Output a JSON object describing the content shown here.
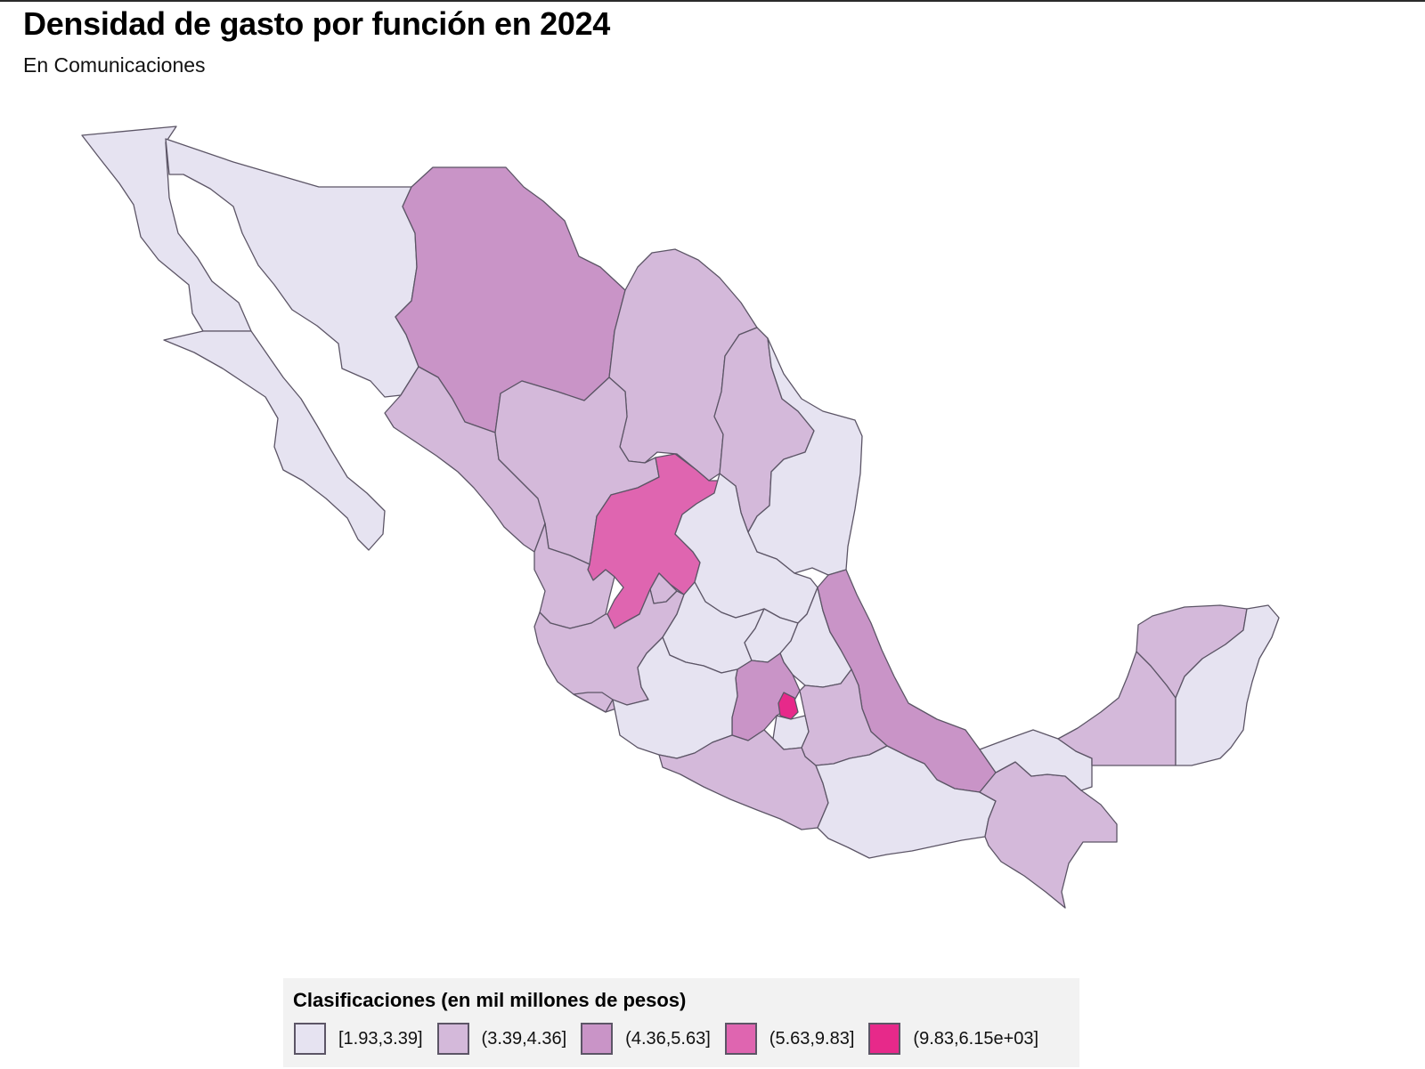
{
  "title": "Densidad de gasto por función en 2024",
  "subtitle": "En Comunicaciones",
  "legend": {
    "title": "Clasificaciones (en mil millones de pesos)",
    "classes": [
      {
        "label": "[1.93,3.39]",
        "color": "#e6e3f1"
      },
      {
        "label": "(3.39,4.36]",
        "color": "#d4b9da"
      },
      {
        "label": "(4.36,5.63]",
        "color": "#c994c7"
      },
      {
        "label": "(5.63,9.83]",
        "color": "#df65b0"
      },
      {
        "label": "(9.83,6.15e+03]",
        "color": "#e7298a"
      }
    ]
  },
  "map_data": {
    "type": "choropleth",
    "regions": [
      {
        "name": "Baja California",
        "class": 0
      },
      {
        "name": "Baja California Sur",
        "class": 0
      },
      {
        "name": "Sonora",
        "class": 0
      },
      {
        "name": "Chihuahua",
        "class": 2
      },
      {
        "name": "Coahuila",
        "class": 1
      },
      {
        "name": "Nuevo León",
        "class": 1
      },
      {
        "name": "Tamaulipas",
        "class": 0
      },
      {
        "name": "Sinaloa",
        "class": 1
      },
      {
        "name": "Durango",
        "class": 1
      },
      {
        "name": "Zacatecas",
        "class": 3
      },
      {
        "name": "San Luis Potosí",
        "class": 0
      },
      {
        "name": "Nayarit",
        "class": 1
      },
      {
        "name": "Aguascalientes",
        "class": 1
      },
      {
        "name": "Jalisco",
        "class": 1
      },
      {
        "name": "Guanajuato",
        "class": 0
      },
      {
        "name": "Querétaro",
        "class": 0
      },
      {
        "name": "Hidalgo",
        "class": 0
      },
      {
        "name": "Veracruz",
        "class": 2
      },
      {
        "name": "Colima",
        "class": 1
      },
      {
        "name": "Michoacán",
        "class": 0
      },
      {
        "name": "Estado de México",
        "class": 2
      },
      {
        "name": "Ciudad de México",
        "class": 4
      },
      {
        "name": "Morelos",
        "class": 0
      },
      {
        "name": "Tlaxcala",
        "class": 0
      },
      {
        "name": "Puebla",
        "class": 1
      },
      {
        "name": "Guerrero",
        "class": 1
      },
      {
        "name": "Oaxaca",
        "class": 0
      },
      {
        "name": "Chiapas",
        "class": 1
      },
      {
        "name": "Tabasco",
        "class": 0
      },
      {
        "name": "Campeche",
        "class": 1
      },
      {
        "name": "Yucatán",
        "class": 1
      },
      {
        "name": "Quintana Roo",
        "class": 0
      }
    ]
  }
}
